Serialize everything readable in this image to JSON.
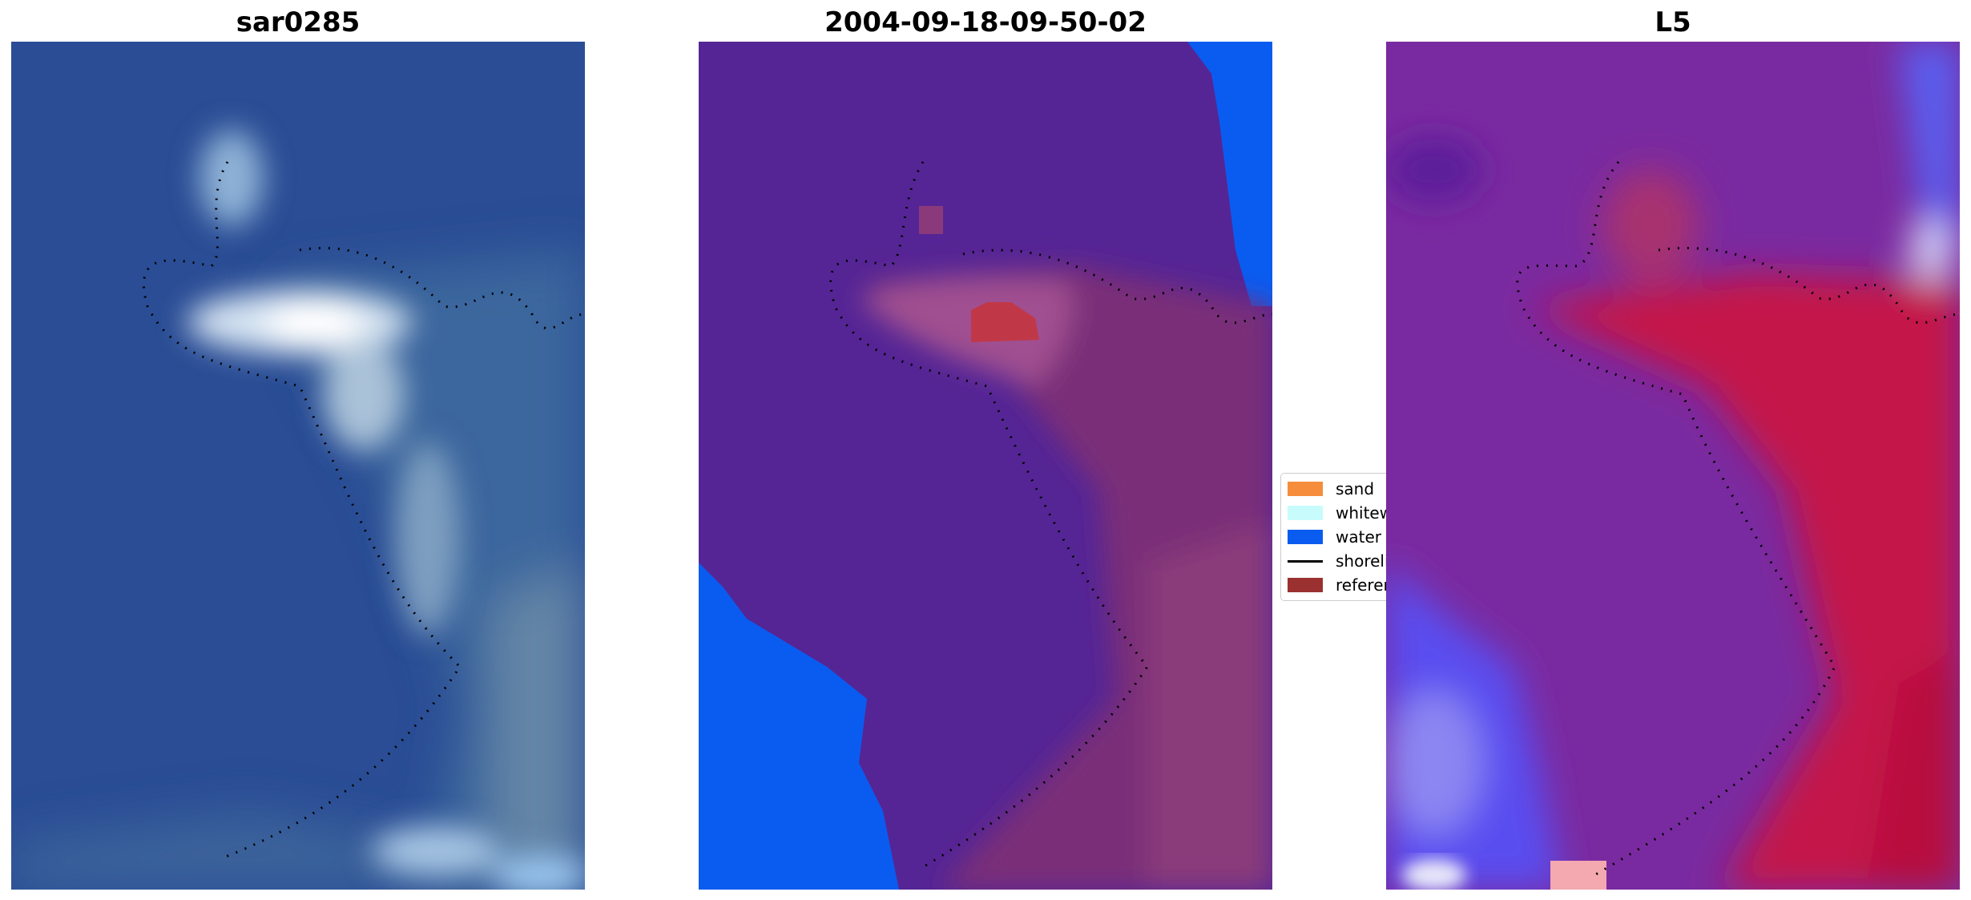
{
  "panels": [
    {
      "title": "sar0285"
    },
    {
      "title": "2004-09-18-09-50-02"
    },
    {
      "title": "L5"
    }
  ],
  "legend": {
    "items": [
      {
        "label": "sand",
        "color": "#f58d3c"
      },
      {
        "label": "whitewater",
        "color": "#c8fbfb"
      },
      {
        "label": "water",
        "color": "#0a5cf0"
      },
      {
        "label": "shoreline",
        "color": "#000000"
      },
      {
        "label": "reference",
        "color": "#9b3030"
      }
    ]
  },
  "colors": {
    "water_blue": "#0a5cf0",
    "classified_land": "#552595",
    "imagery_ocean": "#2b4f97",
    "l5_purple": "#7a2aa0",
    "l5_red": "#c41848"
  }
}
